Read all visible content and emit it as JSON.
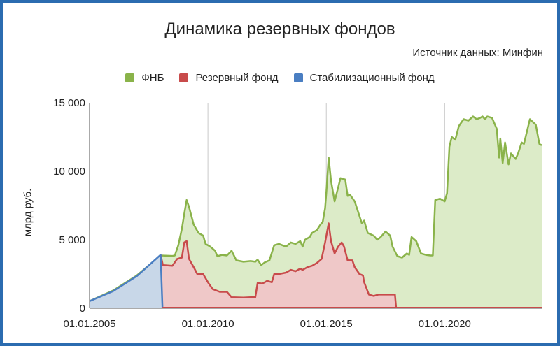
{
  "chart_data": {
    "type": "area",
    "title": "Динамика резервных фондов",
    "source_note": "Источник данных: Минфин",
    "xlabel": "",
    "ylabel": "млрд руб.",
    "xlim": [
      2005.0,
      2024.1
    ],
    "ylim": [
      0,
      15000
    ],
    "x_ticks": [
      {
        "label": "01.01.2005",
        "value": 2005
      },
      {
        "label": "01.01.2010",
        "value": 2010
      },
      {
        "label": "01.01.2015",
        "value": 2015
      },
      {
        "label": "01.01.2020",
        "value": 2020
      }
    ],
    "y_ticks": [
      {
        "label": "0",
        "value": 0
      },
      {
        "label": "5 000",
        "value": 5000
      },
      {
        "label": "10 000",
        "value": 10000
      },
      {
        "label": "15 000",
        "value": 15000
      }
    ],
    "grid": "vertical",
    "legend_position": "top",
    "series": [
      {
        "name": "ФНБ",
        "color": "#8ab34a",
        "fill": "#dcebc8",
        "points": [
          [
            2005.0,
            520
          ],
          [
            2006.0,
            1300
          ],
          [
            2007.0,
            2400
          ],
          [
            2008.0,
            3850
          ],
          [
            2008.5,
            3820
          ],
          [
            2008.6,
            3850
          ],
          [
            2008.75,
            4600
          ],
          [
            2008.9,
            5800
          ],
          [
            2009.0,
            6900
          ],
          [
            2009.1,
            7900
          ],
          [
            2009.2,
            7400
          ],
          [
            2009.4,
            6100
          ],
          [
            2009.6,
            5500
          ],
          [
            2009.8,
            5300
          ],
          [
            2009.9,
            4700
          ],
          [
            2010.1,
            4500
          ],
          [
            2010.3,
            4200
          ],
          [
            2010.4,
            3800
          ],
          [
            2010.6,
            3900
          ],
          [
            2010.8,
            3850
          ],
          [
            2011.0,
            4200
          ],
          [
            2011.2,
            3500
          ],
          [
            2011.5,
            3400
          ],
          [
            2011.8,
            3450
          ],
          [
            2012.0,
            3400
          ],
          [
            2012.1,
            3550
          ],
          [
            2012.25,
            3150
          ],
          [
            2012.4,
            3350
          ],
          [
            2012.6,
            3500
          ],
          [
            2012.8,
            4600
          ],
          [
            2013.0,
            4700
          ],
          [
            2013.3,
            4500
          ],
          [
            2013.5,
            4800
          ],
          [
            2013.7,
            4700
          ],
          [
            2013.9,
            4900
          ],
          [
            2014.0,
            4500
          ],
          [
            2014.1,
            5000
          ],
          [
            2014.3,
            5200
          ],
          [
            2014.4,
            5500
          ],
          [
            2014.6,
            5700
          ],
          [
            2014.75,
            6100
          ],
          [
            2014.85,
            6300
          ],
          [
            2014.95,
            7300
          ],
          [
            2015.0,
            8400
          ],
          [
            2015.1,
            11000
          ],
          [
            2015.2,
            9300
          ],
          [
            2015.35,
            7800
          ],
          [
            2015.5,
            8800
          ],
          [
            2015.6,
            9500
          ],
          [
            2015.8,
            9400
          ],
          [
            2015.9,
            8200
          ],
          [
            2016.0,
            8300
          ],
          [
            2016.2,
            7800
          ],
          [
            2016.35,
            7000
          ],
          [
            2016.5,
            6200
          ],
          [
            2016.6,
            6400
          ],
          [
            2016.75,
            5500
          ],
          [
            2017.0,
            5300
          ],
          [
            2017.15,
            5000
          ],
          [
            2017.3,
            5200
          ],
          [
            2017.5,
            5600
          ],
          [
            2017.7,
            5300
          ],
          [
            2017.8,
            4500
          ],
          [
            2018.0,
            3800
          ],
          [
            2018.2,
            3700
          ],
          [
            2018.4,
            4000
          ],
          [
            2018.5,
            3900
          ],
          [
            2018.6,
            5200
          ],
          [
            2018.8,
            4900
          ],
          [
            2019.0,
            4000
          ],
          [
            2019.2,
            3900
          ],
          [
            2019.4,
            3850
          ],
          [
            2019.5,
            3850
          ],
          [
            2019.6,
            7900
          ],
          [
            2019.8,
            8000
          ],
          [
            2020.0,
            7800
          ],
          [
            2020.1,
            8400
          ],
          [
            2020.2,
            11800
          ],
          [
            2020.3,
            12500
          ],
          [
            2020.45,
            12300
          ],
          [
            2020.6,
            13300
          ],
          [
            2020.8,
            13800
          ],
          [
            2021.0,
            13700
          ],
          [
            2021.2,
            14000
          ],
          [
            2021.35,
            13800
          ],
          [
            2021.5,
            13900
          ],
          [
            2021.6,
            14000
          ],
          [
            2021.7,
            13800
          ],
          [
            2021.8,
            14000
          ],
          [
            2022.0,
            13900
          ],
          [
            2022.2,
            13100
          ],
          [
            2022.3,
            11000
          ],
          [
            2022.35,
            12400
          ],
          [
            2022.45,
            10600
          ],
          [
            2022.55,
            12100
          ],
          [
            2022.7,
            10500
          ],
          [
            2022.8,
            11300
          ],
          [
            2023.0,
            10900
          ],
          [
            2023.1,
            11300
          ],
          [
            2023.25,
            12100
          ],
          [
            2023.35,
            12000
          ],
          [
            2023.6,
            13800
          ],
          [
            2023.85,
            13400
          ],
          [
            2024.0,
            12000
          ],
          [
            2024.1,
            11900
          ]
        ]
      },
      {
        "name": "Резервный фонд",
        "color": "#c84b4b",
        "fill": "#efc8c8",
        "points": [
          [
            2008.0,
            3900
          ],
          [
            2008.1,
            3150
          ],
          [
            2008.5,
            3100
          ],
          [
            2008.7,
            3600
          ],
          [
            2008.9,
            3700
          ],
          [
            2009.0,
            4800
          ],
          [
            2009.1,
            4900
          ],
          [
            2009.2,
            3600
          ],
          [
            2009.4,
            3000
          ],
          [
            2009.55,
            2500
          ],
          [
            2009.8,
            2500
          ],
          [
            2010.0,
            1900
          ],
          [
            2010.2,
            1400
          ],
          [
            2010.5,
            1200
          ],
          [
            2010.8,
            1200
          ],
          [
            2011.0,
            800
          ],
          [
            2011.5,
            780
          ],
          [
            2011.8,
            800
          ],
          [
            2012.0,
            800
          ],
          [
            2012.1,
            1850
          ],
          [
            2012.3,
            1800
          ],
          [
            2012.5,
            2000
          ],
          [
            2012.7,
            1900
          ],
          [
            2012.8,
            2500
          ],
          [
            2013.0,
            2500
          ],
          [
            2013.3,
            2600
          ],
          [
            2013.5,
            2800
          ],
          [
            2013.7,
            2700
          ],
          [
            2013.9,
            2900
          ],
          [
            2014.0,
            2800
          ],
          [
            2014.2,
            3000
          ],
          [
            2014.4,
            3100
          ],
          [
            2014.6,
            3300
          ],
          [
            2014.8,
            3600
          ],
          [
            2014.95,
            4800
          ],
          [
            2015.1,
            6200
          ],
          [
            2015.2,
            4900
          ],
          [
            2015.35,
            4000
          ],
          [
            2015.5,
            4500
          ],
          [
            2015.65,
            4800
          ],
          [
            2015.75,
            4500
          ],
          [
            2015.9,
            3500
          ],
          [
            2016.1,
            3500
          ],
          [
            2016.2,
            3000
          ],
          [
            2016.4,
            2500
          ],
          [
            2016.55,
            2400
          ],
          [
            2016.6,
            1900
          ],
          [
            2016.8,
            1000
          ],
          [
            2017.0,
            900
          ],
          [
            2017.2,
            1000
          ],
          [
            2017.5,
            1000
          ],
          [
            2017.9,
            1000
          ],
          [
            2017.95,
            0
          ]
        ]
      },
      {
        "name": "Стабилизационный фонд",
        "color": "#4a7ec2",
        "fill": "#c8d7e8",
        "points": [
          [
            2005.0,
            520
          ],
          [
            2006.0,
            1250
          ],
          [
            2007.0,
            2350
          ],
          [
            2008.0,
            3900
          ],
          [
            2008.08,
            0
          ]
        ]
      }
    ]
  }
}
